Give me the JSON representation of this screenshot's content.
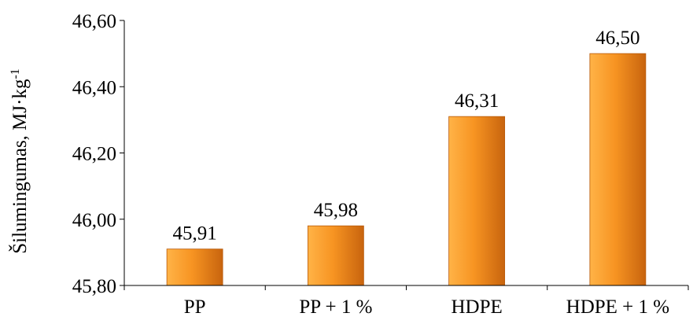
{
  "chart_data": {
    "type": "bar",
    "categories": [
      "PP",
      "PP + 1 %",
      "HDPE",
      "HDPE + 1 %"
    ],
    "values": [
      45.91,
      45.98,
      46.31,
      46.5
    ],
    "value_labels": [
      "45,91",
      "45,98",
      "46,31",
      "46,50"
    ],
    "ylabel_main": "Šilumingumas, MJ·kg",
    "ylabel_sup": "-1",
    "ylim": [
      45.8,
      46.6
    ],
    "y_ticks": [
      45.8,
      46.0,
      46.2,
      46.4,
      46.6
    ],
    "y_tick_labels": [
      "45,80",
      "46,00",
      "46,20",
      "46,40",
      "46,60"
    ],
    "grid": false,
    "legend": "none",
    "bar_color_light": "#ffb347",
    "bar_color_mid": "#f79422",
    "bar_color_dark": "#c8640e"
  }
}
